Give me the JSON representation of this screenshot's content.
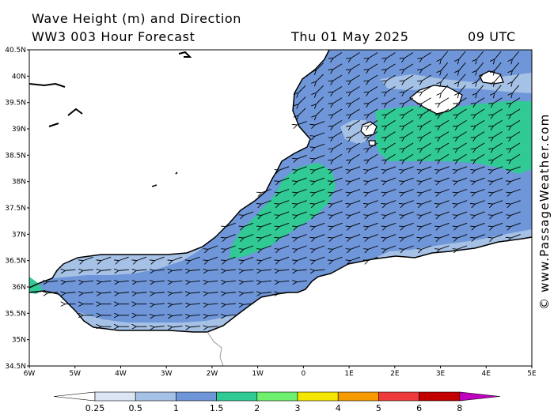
{
  "header": {
    "title": "Wave Height (m) and Direction",
    "subtitle": "WW3 003 Hour Forecast",
    "date": "Thu 01 May 2025",
    "time": "09 UTC"
  },
  "axes": {
    "lat_labels": [
      "40.5N",
      "40N",
      "39.5N",
      "39N",
      "38.5N",
      "38N",
      "37.5N",
      "37N",
      "36.5N",
      "36N",
      "35.5N",
      "35N",
      "34.5N"
    ],
    "lon_labels": [
      "6W",
      "5W",
      "4W",
      "3W",
      "2W",
      "1W",
      "0",
      "1E",
      "2E",
      "3E",
      "4E",
      "5E"
    ]
  },
  "credit": "© www.PassageWeather.com",
  "legend": {
    "labels": [
      "0.25",
      "0.5",
      "1",
      "1.5",
      "2",
      "3",
      "4",
      "5",
      "6",
      "8"
    ],
    "colors": [
      "#ffffff",
      "#dbe6f5",
      "#a5c1e6",
      "#6f96d8",
      "#31c994",
      "#6ef06e",
      "#f5e600",
      "#f59a00",
      "#ee3a3a",
      "#c20000",
      "#c000c0"
    ]
  },
  "colors": {
    "land": "#ffffff",
    "sea_0_5": "#a5c1e6",
    "sea_1_1_5": "#6f96d8",
    "sea_2_3": "#31c994"
  },
  "wind_direction": "waves moving toward west-southwest (arrows point left/down-left)"
}
